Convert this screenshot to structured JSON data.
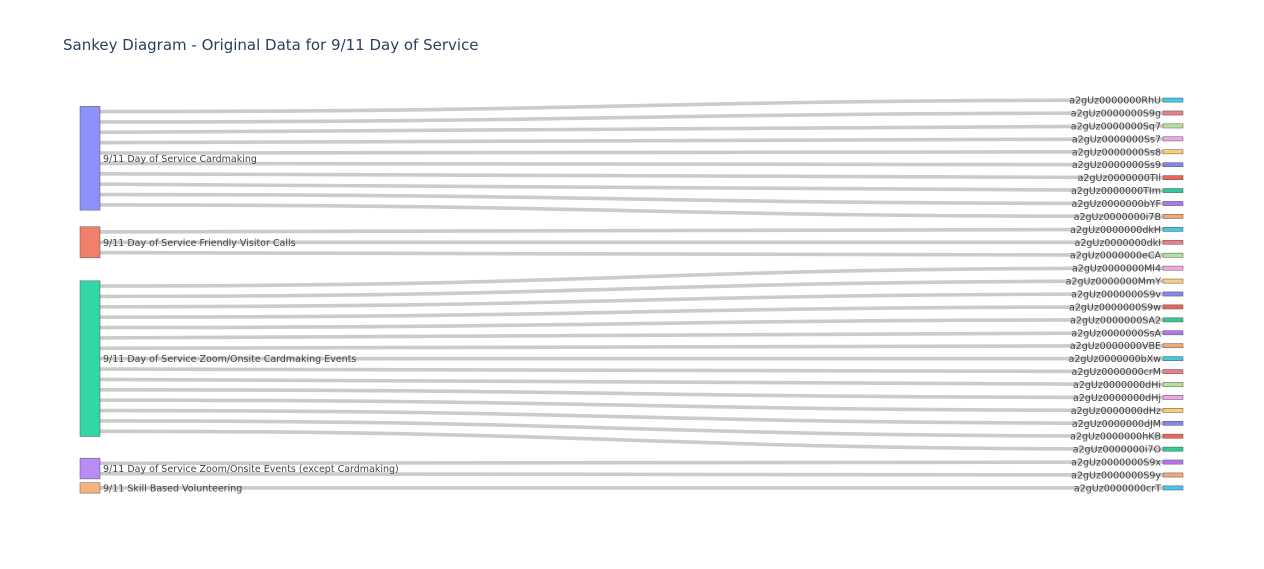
{
  "chart_data": {
    "type": "sankey",
    "title": "Sankey Diagram - Original Data for 9/11 Day of Service",
    "sources": [
      {
        "label": "9/11 Day of Service Cardmaking",
        "color": "#8c92f9"
      },
      {
        "label": "9/11 Day of Service Friendly Visitor Calls",
        "color": "#f0806a"
      },
      {
        "label": "9/11 Day of Service Zoom/Onsite Cardmaking Events",
        "color": "#33d6a6"
      },
      {
        "label": "9/11 Day of Service Zoom/Onsite Events (except Cardmaking)",
        "color": "#b98cf5"
      },
      {
        "label": "9/11 Skill Based Volunteering",
        "color": "#f5b380"
      }
    ],
    "targets": [
      {
        "label": "a2gUz0000000RhU",
        "color": "#41c8e6"
      },
      {
        "label": "a2gUz0000000S9g",
        "color": "#ee7a8e"
      },
      {
        "label": "a2gUz0000000Sq7",
        "color": "#b5e29a"
      },
      {
        "label": "a2gUz0000000Ss7",
        "color": "#f5a4ea"
      },
      {
        "label": "a2gUz0000000Ss8",
        "color": "#f8cf77"
      },
      {
        "label": "a2gUz0000000Ss9",
        "color": "#8088ec"
      },
      {
        "label": "a2gUz0000000TIl",
        "color": "#e8665a"
      },
      {
        "label": "a2gUz0000000TIm",
        "color": "#2fc99c"
      },
      {
        "label": "a2gUz0000000bYF",
        "color": "#b076ec"
      },
      {
        "label": "a2gUz0000000i7B",
        "color": "#f3a96f"
      },
      {
        "label": "a2gUz0000000dkH",
        "color": "#41c8e6"
      },
      {
        "label": "a2gUz0000000dkI",
        "color": "#ee7a8e"
      },
      {
        "label": "a2gUz0000000eCA",
        "color": "#b5e29a"
      },
      {
        "label": "a2gUz0000000Ml4",
        "color": "#f5a4ea"
      },
      {
        "label": "a2gUz0000000MmY",
        "color": "#f8cf77"
      },
      {
        "label": "a2gUz0000000S9v",
        "color": "#8088ec"
      },
      {
        "label": "a2gUz0000000S9w",
        "color": "#e8665a"
      },
      {
        "label": "a2gUz0000000SA2",
        "color": "#2fc99c"
      },
      {
        "label": "a2gUz0000000SsA",
        "color": "#b076ec"
      },
      {
        "label": "a2gUz0000000VBE",
        "color": "#f3a96f"
      },
      {
        "label": "a2gUz0000000bXw",
        "color": "#41c8e6"
      },
      {
        "label": "a2gUz0000000crM",
        "color": "#ee7a8e"
      },
      {
        "label": "a2gUz0000000dHi",
        "color": "#b5e29a"
      },
      {
        "label": "a2gUz0000000dHj",
        "color": "#f5a4ea"
      },
      {
        "label": "a2gUz0000000dHz",
        "color": "#f8cf77"
      },
      {
        "label": "a2gUz0000000dJM",
        "color": "#8088ec"
      },
      {
        "label": "a2gUz0000000hKB",
        "color": "#e8665a"
      },
      {
        "label": "a2gUz0000000i7O",
        "color": "#2fc99c"
      },
      {
        "label": "a2gUz0000000S9x",
        "color": "#b076ec"
      },
      {
        "label": "a2gUz0000000S9y",
        "color": "#f3a96f"
      },
      {
        "label": "a2gUz0000000crT",
        "color": "#41c8e6"
      }
    ],
    "links": [
      {
        "source": 0,
        "target": 0,
        "value": 1
      },
      {
        "source": 0,
        "target": 1,
        "value": 1
      },
      {
        "source": 0,
        "target": 2,
        "value": 1
      },
      {
        "source": 0,
        "target": 3,
        "value": 1
      },
      {
        "source": 0,
        "target": 4,
        "value": 1
      },
      {
        "source": 0,
        "target": 5,
        "value": 1
      },
      {
        "source": 0,
        "target": 6,
        "value": 1
      },
      {
        "source": 0,
        "target": 7,
        "value": 1
      },
      {
        "source": 0,
        "target": 8,
        "value": 1
      },
      {
        "source": 0,
        "target": 9,
        "value": 1
      },
      {
        "source": 1,
        "target": 10,
        "value": 1
      },
      {
        "source": 1,
        "target": 11,
        "value": 1
      },
      {
        "source": 1,
        "target": 12,
        "value": 1
      },
      {
        "source": 2,
        "target": 13,
        "value": 1
      },
      {
        "source": 2,
        "target": 14,
        "value": 1
      },
      {
        "source": 2,
        "target": 15,
        "value": 1
      },
      {
        "source": 2,
        "target": 16,
        "value": 1
      },
      {
        "source": 2,
        "target": 17,
        "value": 1
      },
      {
        "source": 2,
        "target": 18,
        "value": 1
      },
      {
        "source": 2,
        "target": 19,
        "value": 1
      },
      {
        "source": 2,
        "target": 20,
        "value": 1
      },
      {
        "source": 2,
        "target": 21,
        "value": 1
      },
      {
        "source": 2,
        "target": 22,
        "value": 1
      },
      {
        "source": 2,
        "target": 23,
        "value": 1
      },
      {
        "source": 2,
        "target": 24,
        "value": 1
      },
      {
        "source": 2,
        "target": 25,
        "value": 1
      },
      {
        "source": 2,
        "target": 26,
        "value": 1
      },
      {
        "source": 2,
        "target": 27,
        "value": 1
      },
      {
        "source": 3,
        "target": 28,
        "value": 1
      },
      {
        "source": 3,
        "target": 29,
        "value": 1
      },
      {
        "source": 4,
        "target": 30,
        "value": 1
      }
    ]
  }
}
